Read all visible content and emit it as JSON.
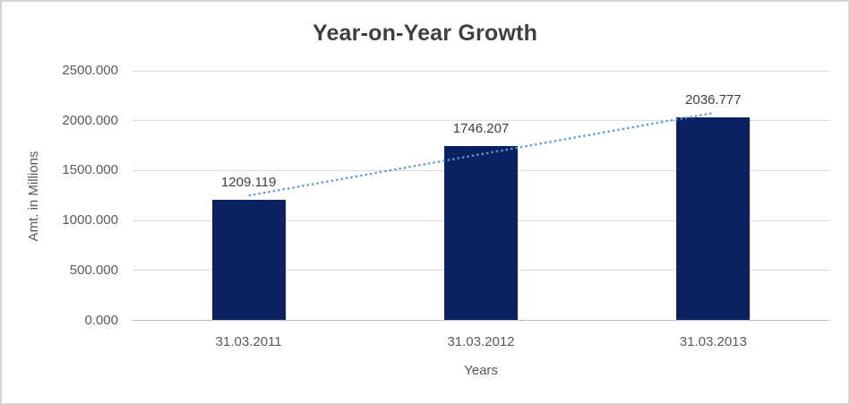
{
  "chart_data": {
    "type": "bar",
    "title": "Year-on-Year Growth",
    "xlabel": "Years",
    "ylabel": "Amt. in Millions",
    "categories": [
      "31.03.2011",
      "31.03.2012",
      "31.03.2013"
    ],
    "values": [
      1209.119,
      1746.207,
      2036.777
    ],
    "data_labels": [
      "1209.119",
      "1746.207",
      "2036.777"
    ],
    "ylim": [
      0,
      2500
    ],
    "ytick_values": [
      0,
      500,
      1000,
      1500,
      2000,
      2500
    ],
    "ytick_labels": [
      "0.000",
      "500.000",
      "1000.000",
      "1500.000",
      "2000.000",
      "2500.000"
    ],
    "grid": true,
    "legend": "none",
    "trendline": {
      "type": "linear",
      "style": "dotted",
      "color": "#5b9bd5"
    },
    "colors": {
      "bar": "#0b2161",
      "trendline": "#5b9bd5",
      "gridline": "#d9d9d9",
      "axis_line": "#bfbfbf",
      "tick_text": "#595959",
      "title_text": "#3f3f3f",
      "border": "#d3d3d3"
    }
  }
}
